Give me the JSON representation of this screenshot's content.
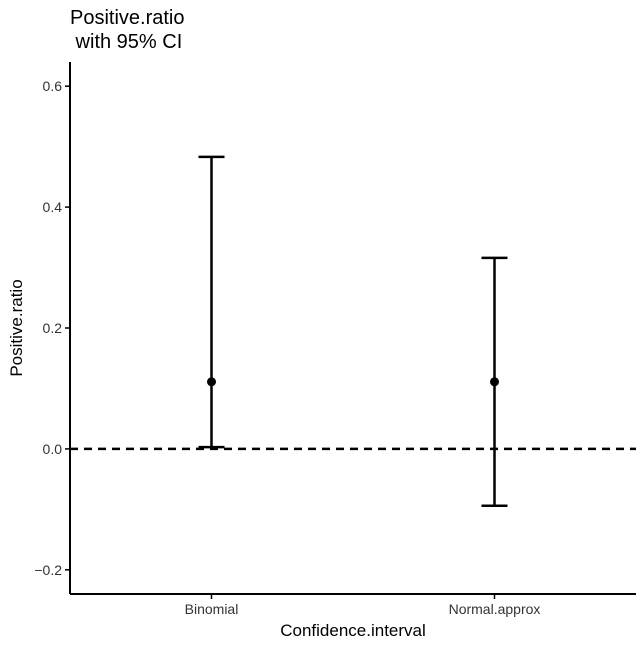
{
  "chart_data": {
    "type": "errorbar",
    "title_lines": [
      "Positive.ratio",
      " with 95% CI"
    ],
    "xlabel": "Confidence.interval",
    "ylabel": "Positive.ratio",
    "categories": [
      "Binomial",
      "Normal.approx"
    ],
    "points": [
      {
        "category": "Binomial",
        "estimate": 0.111,
        "lower": 0.003,
        "upper": 0.483
      },
      {
        "category": "Normal.approx",
        "estimate": 0.111,
        "lower": -0.094,
        "upper": 0.316
      }
    ],
    "yticks": [
      -0.2,
      0.0,
      0.2,
      0.4,
      0.6
    ],
    "ytick_labels": [
      "−0.2",
      "0.0",
      "0.2",
      "0.4",
      "0.6"
    ],
    "ylim": [
      -0.24,
      0.64
    ],
    "reference_line": {
      "y": 0,
      "style": "dashed"
    },
    "colors": {
      "ink": "#000000",
      "tick_text": "#333333"
    }
  }
}
